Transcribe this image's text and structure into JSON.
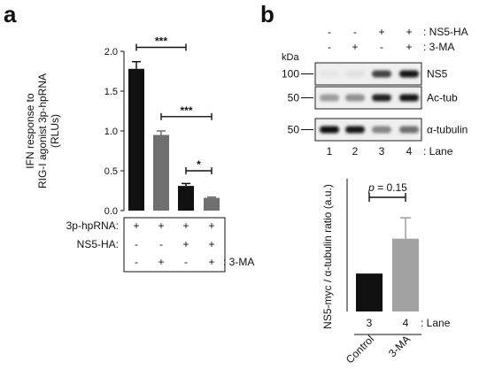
{
  "panels": {
    "a": "a",
    "b": "b"
  },
  "chart_data": [
    {
      "type": "bar",
      "panel": "a",
      "ylabel_lines": [
        "IFN response to",
        "RIG-I agonist 3p-hpRNA",
        "(RLUs)"
      ],
      "yticks": [
        "0.0",
        "0.5",
        "1.0",
        "1.5",
        "2.0"
      ],
      "ylim": [
        0,
        2.0
      ],
      "values": [
        1.78,
        0.95,
        0.31,
        0.16
      ],
      "errors": [
        0.09,
        0.05,
        0.03,
        0.01
      ],
      "colors": [
        "#111111",
        "#6f6f6f",
        "#111111",
        "#6f6f6f"
      ],
      "significance": [
        {
          "from": 0,
          "to": 2,
          "label": "***",
          "y": 2.05
        },
        {
          "from": 1,
          "to": 3,
          "label": "***",
          "y": 1.18
        },
        {
          "from": 2,
          "to": 3,
          "label": "*",
          "y": 0.5
        }
      ],
      "conditions": [
        {
          "label": "3p-hpRNA:",
          "values": [
            "+",
            "+",
            "+",
            "+"
          ]
        },
        {
          "label": "NS5-HA:",
          "values": [
            "-",
            "-",
            "+",
            "+"
          ]
        },
        {
          "label": "",
          "values": [
            "-",
            "+",
            "-",
            "+"
          ],
          "suffix": ": 3-MA"
        }
      ]
    },
    {
      "type": "bar",
      "panel": "b",
      "ylabel": "NS5-myc / α-tubulin ratio (a.u.)",
      "values": [
        1.0,
        1.92
      ],
      "errors": [
        0,
        0.55
      ],
      "ylim": [
        0,
        3.5
      ],
      "colors": [
        "#111111",
        "#a3a3a3"
      ],
      "categories": [
        "3",
        "4"
      ],
      "lane_suffix": ": Lane",
      "group_labels": [
        "Control",
        "3-MA"
      ],
      "annotation_p": "p",
      "annotation_rest": " = 0.15"
    }
  ],
  "blot": {
    "header_rows": [
      {
        "values": [
          "-",
          "-",
          "+",
          "+"
        ],
        "label": ": NS5-HA"
      },
      {
        "values": [
          "-",
          "+",
          "-",
          "+"
        ],
        "label": ": 3-MA"
      }
    ],
    "kda_label": "kDa",
    "strips": [
      {
        "marker": "100",
        "name": "NS5",
        "intensity": [
          0.02,
          0.04,
          0.75,
          0.95
        ]
      },
      {
        "marker": "50",
        "name": "Ac-tub",
        "intensity": [
          0.35,
          0.4,
          0.9,
          0.95
        ]
      },
      {
        "marker": "50",
        "name": "α-tubulin",
        "intensity": [
          1.0,
          0.95,
          0.45,
          0.55
        ]
      }
    ],
    "lanes": [
      "1",
      "2",
      "3",
      "4"
    ],
    "lane_label": ": Lane"
  }
}
